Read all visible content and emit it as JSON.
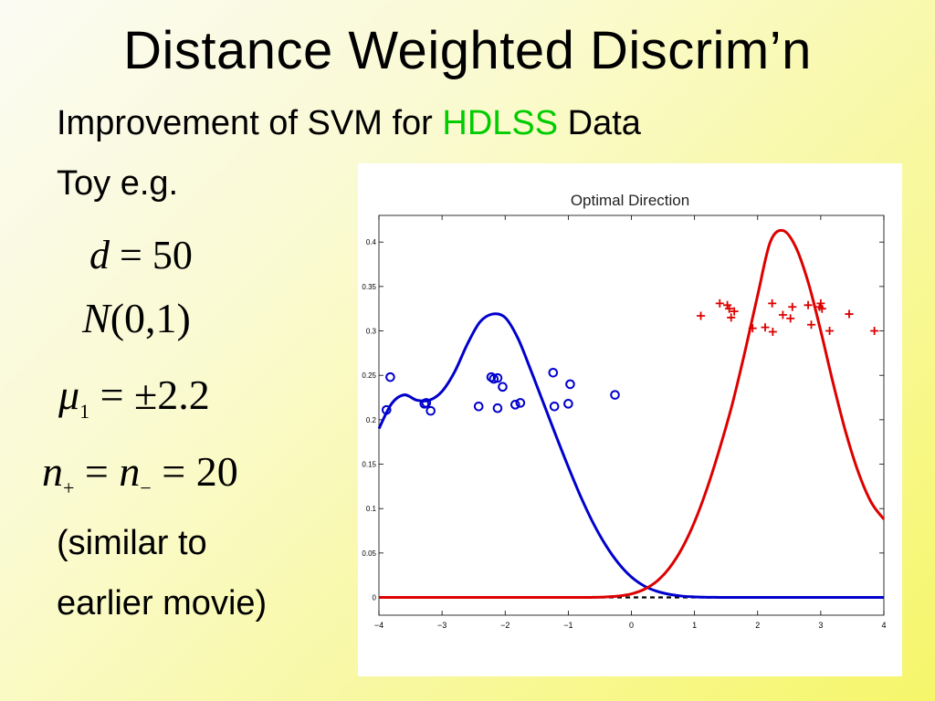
{
  "slide": {
    "title": "Distance Weighted Discrim’n",
    "subtitle_pre": "Improvement of SVM for ",
    "subtitle_highlight": "HDLSS",
    "subtitle_post": " Data",
    "toy": "Toy e.g.",
    "eq_d_var": "d",
    "eq_d_rest": " = 50",
    "eq_n_var": "N",
    "eq_n_rest": "(0,1)",
    "eq_mu_var": "μ",
    "eq_mu_sub": "1",
    "eq_mu_rest": " = ±2.2",
    "eq_np_var": "n",
    "eq_np_sub": "+",
    "eq_np_mid": " = ",
    "eq_nm_var": "n",
    "eq_nm_sub": "−",
    "eq_nm_rest": " = 20",
    "similar_line1": "(similar to",
    "similar_line2": "earlier movie)",
    "highlight_color": "#00cc00"
  },
  "chart_data": {
    "type": "line",
    "title": "Optimal Direction",
    "xlabel": "",
    "ylabel": "",
    "xlim": [
      -4,
      4
    ],
    "ylim": [
      -0.02,
      0.43
    ],
    "x_ticks": [
      -4,
      -3,
      -2,
      -1,
      0,
      1,
      2,
      3,
      4
    ],
    "x_tick_labels": [
      "−4",
      "−3",
      "−2",
      "−1",
      "0",
      "1",
      "2",
      "3",
      "4"
    ],
    "y_ticks": [
      0,
      0.05,
      0.1,
      0.15,
      0.2,
      0.25,
      0.3,
      0.35,
      0.4
    ],
    "y_tick_labels": [
      "0",
      "0.05",
      "0.1",
      "0.15",
      "0.2",
      "0.25",
      "0.3",
      "0.35",
      "0.4"
    ],
    "series": [
      {
        "color": "#0000cc",
        "x": [
          -4.0,
          -3.8,
          -3.6,
          -3.4,
          -3.2,
          -3.0,
          -2.8,
          -2.6,
          -2.4,
          -2.2,
          -2.0,
          -1.8,
          -1.6,
          -1.4,
          -1.2,
          -1.0,
          -0.8,
          -0.6,
          -0.4,
          -0.2,
          0.0,
          0.2,
          0.4,
          0.6,
          0.8,
          1.0,
          1.2,
          1.4,
          1.6,
          2.0,
          3.0,
          4.0
        ],
        "y": [
          0.19,
          0.218,
          0.228,
          0.222,
          0.222,
          0.232,
          0.254,
          0.285,
          0.31,
          0.319,
          0.315,
          0.292,
          0.257,
          0.22,
          0.183,
          0.147,
          0.113,
          0.083,
          0.058,
          0.038,
          0.023,
          0.013,
          0.007,
          0.0035,
          0.0015,
          0.0006,
          0.0002,
          0.0001,
          0.0,
          0.0,
          0.0,
          0.0
        ]
      },
      {
        "color": "#dd0000",
        "x": [
          -4.0,
          -1.0,
          -0.6,
          -0.4,
          -0.2,
          0.0,
          0.2,
          0.4,
          0.6,
          0.8,
          1.0,
          1.2,
          1.4,
          1.6,
          1.8,
          2.0,
          2.2,
          2.4,
          2.6,
          2.8,
          3.0,
          3.2,
          3.4,
          3.6,
          3.8,
          4.0
        ],
        "y": [
          0.0,
          0.0,
          0.0002,
          0.0006,
          0.0016,
          0.004,
          0.009,
          0.018,
          0.033,
          0.055,
          0.085,
          0.123,
          0.168,
          0.218,
          0.277,
          0.34,
          0.4,
          0.413,
          0.395,
          0.355,
          0.3,
          0.24,
          0.185,
          0.14,
          0.107,
          0.088
        ]
      }
    ],
    "scatter_series": [
      {
        "marker": "circle",
        "color": "#0000cc",
        "points": [
          [
            -3.88,
            0.211
          ],
          [
            -3.82,
            0.248
          ],
          [
            -3.28,
            0.218
          ],
          [
            -3.25,
            0.219
          ],
          [
            -3.18,
            0.21
          ],
          [
            -2.42,
            0.215
          ],
          [
            -2.22,
            0.248
          ],
          [
            -2.18,
            0.246
          ],
          [
            -2.12,
            0.247
          ],
          [
            -2.12,
            0.213
          ],
          [
            -2.04,
            0.237
          ],
          [
            -1.84,
            0.217
          ],
          [
            -1.76,
            0.219
          ],
          [
            -1.24,
            0.253
          ],
          [
            -1.22,
            0.215
          ],
          [
            -1.0,
            0.218
          ],
          [
            -0.97,
            0.24
          ],
          [
            -0.26,
            0.228
          ]
        ]
      },
      {
        "marker": "plus",
        "color": "#dd0000",
        "points": [
          [
            1.1,
            0.317
          ],
          [
            1.4,
            0.331
          ],
          [
            1.52,
            0.329
          ],
          [
            1.55,
            0.325
          ],
          [
            1.58,
            0.315
          ],
          [
            1.63,
            0.322
          ],
          [
            1.92,
            0.303
          ],
          [
            2.12,
            0.304
          ],
          [
            2.23,
            0.331
          ],
          [
            2.24,
            0.299
          ],
          [
            2.4,
            0.318
          ],
          [
            2.52,
            0.314
          ],
          [
            2.55,
            0.327
          ],
          [
            2.8,
            0.329
          ],
          [
            2.85,
            0.307
          ],
          [
            2.98,
            0.327
          ],
          [
            3.0,
            0.331
          ],
          [
            3.02,
            0.325
          ],
          [
            3.14,
            0.3
          ],
          [
            3.45,
            0.319
          ],
          [
            3.85,
            0.3
          ]
        ]
      }
    ],
    "baseline_dashed": {
      "y": 0,
      "color": "#000000"
    },
    "grid": false
  }
}
